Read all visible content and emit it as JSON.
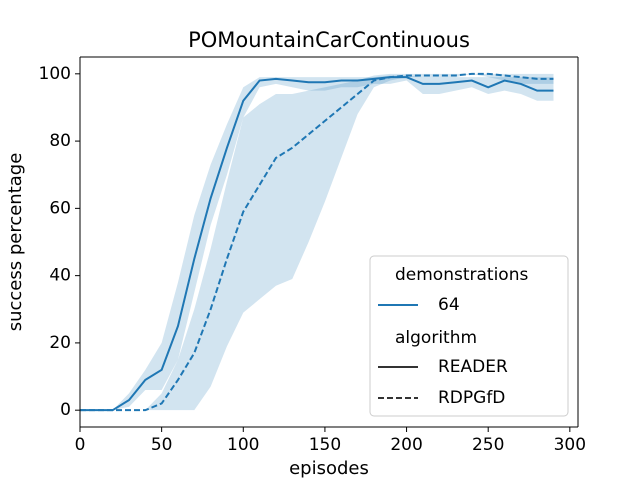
{
  "chart_data": {
    "type": "line",
    "title": "POMountainCarContinuous",
    "xlabel": "episodes",
    "ylabel": "success percentage",
    "x": [
      0,
      10,
      20,
      30,
      40,
      50,
      60,
      70,
      80,
      90,
      100,
      110,
      120,
      130,
      140,
      150,
      160,
      170,
      180,
      190,
      200,
      210,
      220,
      230,
      240,
      250,
      260,
      270,
      280,
      290
    ],
    "series": [
      {
        "name": "READER",
        "color": "#1f77b4",
        "linestyle": "solid",
        "values": [
          0,
          0,
          0,
          3,
          9,
          12,
          25,
          45,
          63,
          78,
          92,
          98,
          98.5,
          98,
          97.5,
          97.5,
          98,
          98,
          98.5,
          99,
          99,
          97,
          97,
          97.5,
          98,
          96,
          98,
          97,
          95,
          95
        ],
        "ci_low": [
          0,
          0,
          0,
          1,
          6,
          6,
          15,
          35,
          55,
          70,
          87,
          96,
          97,
          96,
          95,
          95,
          96,
          96,
          97,
          97,
          98,
          94,
          94,
          95,
          96,
          94,
          95,
          94,
          92,
          92
        ],
        "ci_high": [
          0,
          0,
          0,
          5,
          12,
          20,
          38,
          58,
          73,
          85,
          96,
          99,
          99,
          99,
          99,
          99,
          99,
          99,
          99,
          99.5,
          99.5,
          99,
          99,
          99,
          99,
          99,
          99,
          99,
          99,
          99
        ]
      },
      {
        "name": "RDPGfD",
        "color": "#1f77b4",
        "linestyle": "dashed",
        "values": [
          0,
          0,
          0,
          0,
          0,
          2,
          9,
          17,
          30,
          45,
          59,
          67,
          75,
          78,
          82,
          86,
          90,
          94,
          98,
          99,
          99.5,
          99.5,
          99.5,
          99.5,
          100,
          100,
          99.5,
          99,
          98.5,
          98.5
        ],
        "ci_low": [
          0,
          0,
          0,
          0,
          0,
          0,
          0,
          0,
          7,
          19,
          29,
          33,
          37,
          39,
          50,
          62,
          75,
          88,
          96,
          98,
          99,
          99,
          99,
          99,
          100,
          99,
          98,
          97,
          97,
          97
        ],
        "ci_high": [
          0,
          0,
          0,
          0,
          0,
          5,
          15,
          30,
          48,
          68,
          87,
          91,
          94,
          94,
          95,
          96,
          97,
          98,
          99.5,
          100,
          100,
          100,
          100,
          100,
          100,
          100,
          100,
          100,
          100,
          100
        ]
      }
    ],
    "legend": {
      "hue_title": "demonstrations",
      "hue_labels": [
        "64"
      ],
      "style_title": "algorithm",
      "position": "lower right"
    },
    "xlim": [
      0,
      305
    ],
    "xticks": [
      0,
      50,
      100,
      150,
      200,
      250,
      300
    ],
    "ylim": [
      -5,
      105
    ],
    "yticks": [
      0,
      20,
      40,
      60,
      80,
      100
    ],
    "grid": false
  }
}
